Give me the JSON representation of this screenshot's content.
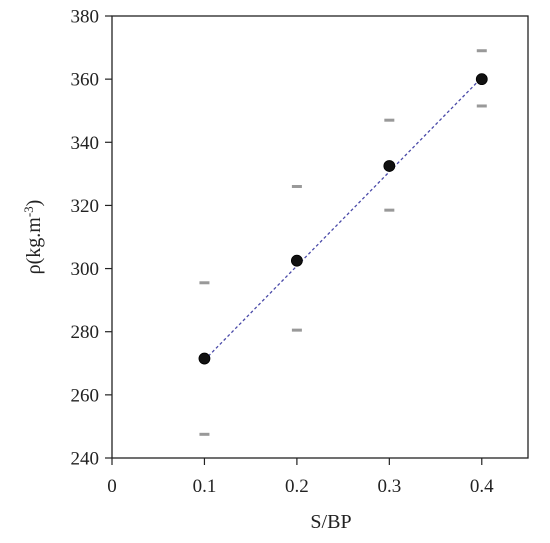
{
  "chart_data": {
    "type": "scatter",
    "xlabel": "S/BP",
    "ylabel_main": "ρ(kg.m",
    "ylabel_sup": "-3",
    "ylabel_close": ")",
    "xlim": [
      0,
      0.45
    ],
    "ylim": [
      240,
      380
    ],
    "xticks": [
      0,
      0.1,
      0.2,
      0.3,
      0.4
    ],
    "xtick_labels": [
      "0",
      "0.1",
      "0.2",
      "0.3",
      "0.4"
    ],
    "yticks": [
      240,
      260,
      280,
      300,
      320,
      340,
      360,
      380
    ],
    "ytick_labels": [
      "240",
      "260",
      "280",
      "300",
      "320",
      "340",
      "360",
      "380"
    ],
    "grid": false,
    "points": [
      {
        "x": 0.1,
        "y": 271.5
      },
      {
        "x": 0.2,
        "y": 302.5
      },
      {
        "x": 0.3,
        "y": 332.5
      },
      {
        "x": 0.4,
        "y": 360.0
      }
    ],
    "upper_bounds": [
      {
        "x": 0.1,
        "y": 295.5
      },
      {
        "x": 0.2,
        "y": 326.0
      },
      {
        "x": 0.3,
        "y": 347.0
      },
      {
        "x": 0.4,
        "y": 369.0
      }
    ],
    "lower_bounds": [
      {
        "x": 0.1,
        "y": 247.5
      },
      {
        "x": 0.2,
        "y": 280.5
      },
      {
        "x": 0.3,
        "y": 318.5
      },
      {
        "x": 0.4,
        "y": 351.5
      }
    ],
    "fit_line": {
      "x": [
        0.1,
        0.4
      ],
      "y": [
        271.0,
        360.5
      ],
      "style": "dashed",
      "color": "#4a4aa8"
    },
    "colors": {
      "points": "#111111",
      "bounds": "#999999",
      "axes": "#222222"
    }
  }
}
